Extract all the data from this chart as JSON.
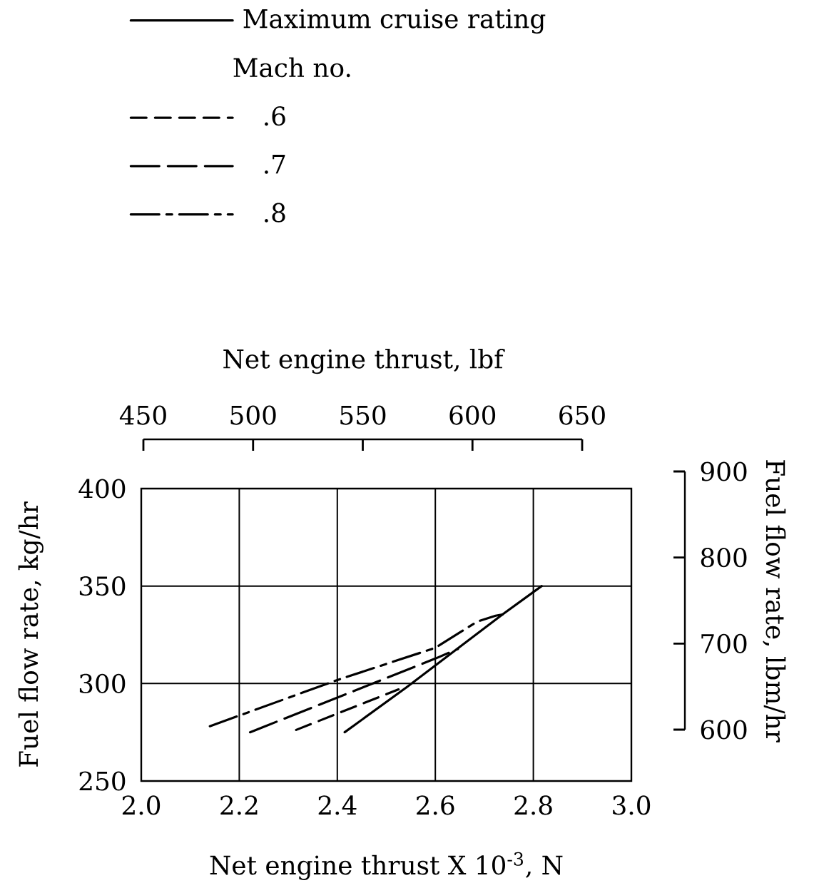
{
  "chart_data": {
    "type": "line",
    "xlabel": "Net engine thrust X 10$^{-3}$, N",
    "ylabel": "Fuel flow rate, kg/hr",
    "x2label": "Net engine thrust, lbf",
    "y2label": "Fuel flow rate, lbm/hr",
    "legend_title": "Mach no.",
    "legend": "top",
    "grid": true,
    "xlim": [
      2.0,
      3.0
    ],
    "xticks": [
      {
        "value": 2,
        "label": "2.0"
      },
      2.2,
      2.4,
      2.6,
      2.8,
      {
        "value": 3,
        "label": "3.0"
      }
    ],
    "ylim": [
      250,
      400
    ],
    "yticks": [
      250,
      300,
      350,
      400
    ],
    "x2lim": [
      450,
      650
    ],
    "x2ticks": [
      450,
      500,
      550,
      600,
      650
    ],
    "y2lim": [
      600,
      900
    ],
    "y2ticks": [
      600,
      700,
      800,
      900
    ],
    "series": [
      {
        "name": "Maximum cruise rating",
        "color": "#000000",
        "line_style": "solid",
        "x": [
          2.415,
          2.542,
          2.737,
          2.817
        ],
        "values": [
          275,
          298.2,
          335.4,
          350
        ]
      },
      {
        "name": ".6",
        "color": "#000000",
        "line_style": "dashed",
        "x": [
          2.316,
          2.525
        ],
        "values": [
          276.2,
          297
        ]
      },
      {
        "name": ".7",
        "color": "#000000",
        "line_style": "longdashed",
        "x": [
          2.222,
          2.6,
          2.646
        ],
        "values": [
          275,
          312.8,
          317.7
        ]
      },
      {
        "name": ".8",
        "color": "#000000",
        "line_style": "dashdotted",
        "x": [
          2.14,
          2.4,
          2.6,
          2.685,
          2.723,
          2.737
        ],
        "values": [
          278.1,
          301.8,
          318.3,
          331.7,
          334.8,
          335.4
        ]
      }
    ]
  }
}
